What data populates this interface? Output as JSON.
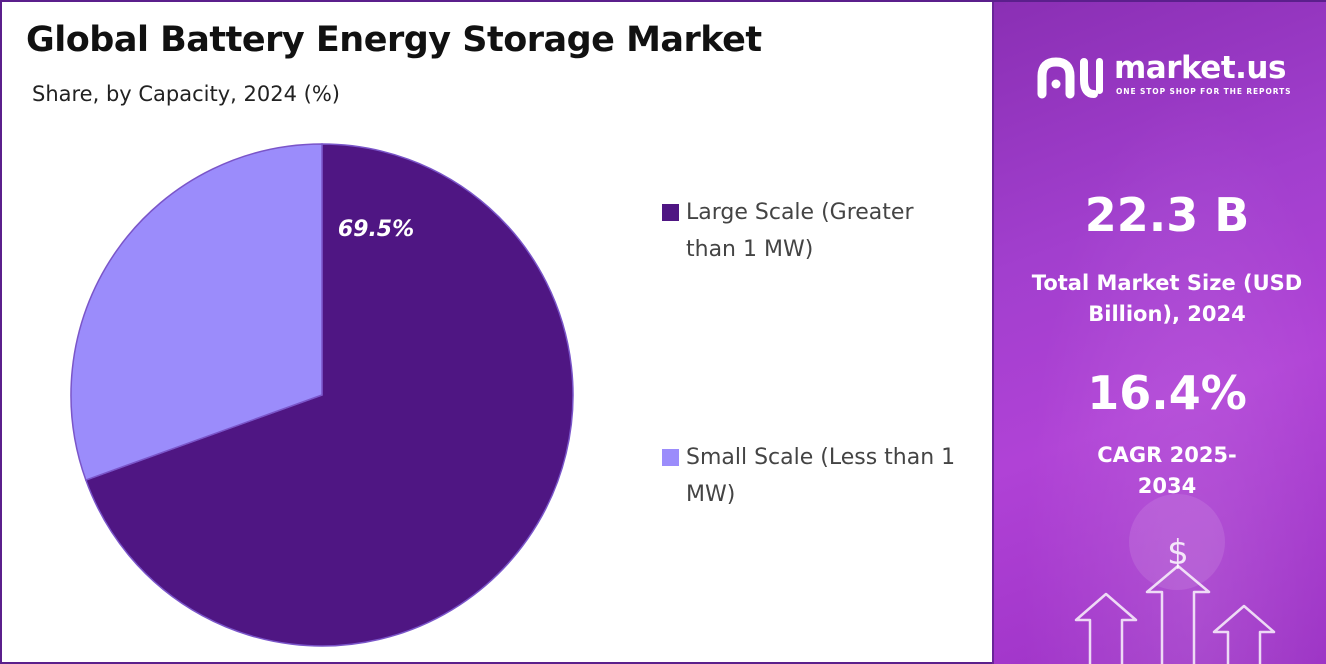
{
  "chart_data": {
    "type": "pie",
    "title": "Global Battery Energy Storage Market",
    "subtitle": "Share, by Capacity, 2024 (%)",
    "slices": [
      {
        "label": "Large Scale (Greater than 1 MW)",
        "value": 69.5,
        "color": "#4f1683",
        "data_label": "69.5%"
      },
      {
        "label": "Small Scale (Less than 1 MW)",
        "value": 30.5,
        "color": "#9b8cfb",
        "data_label": ""
      }
    ],
    "legend_position": "right"
  },
  "legend": {
    "items": [
      {
        "label": "Large Scale (Greater than 1 MW)",
        "color": "#4f1683"
      },
      {
        "label": "Small Scale (Less than 1 MW)",
        "color": "#9b8cfb"
      }
    ]
  },
  "sidebar": {
    "brand": {
      "name": "market.us",
      "tagline": "ONE STOP SHOP FOR THE REPORTS",
      "icon": "market-us-logo-icon"
    },
    "market_size": {
      "value": "22.3 B",
      "label": "Total Market Size (USD Billion), 2024"
    },
    "cagr": {
      "value": "16.4%",
      "label": "CAGR 2025-2034"
    },
    "decoration_icon": "growth-arrows-icon",
    "currency_symbol": "$"
  },
  "colors": {
    "frame": "#5b1f8c",
    "panel": "#a23fce"
  }
}
